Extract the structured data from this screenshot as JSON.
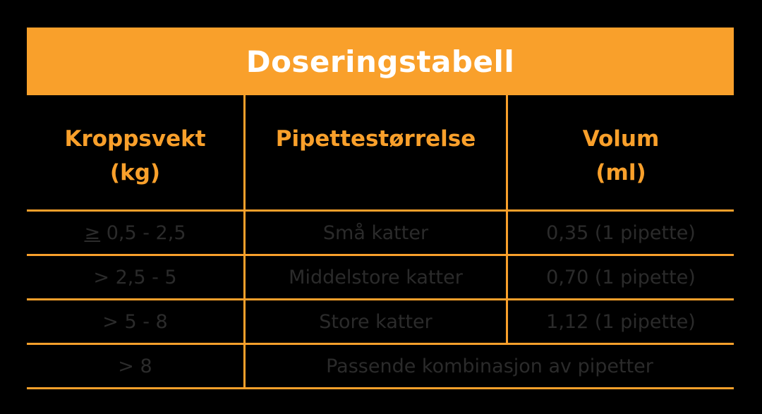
{
  "title": "Doseringstabell",
  "colors": {
    "accent": "#F9A02B",
    "background": "#000000",
    "body_text": "#2b2b2b",
    "title_text": "#ffffff"
  },
  "headers": [
    "Kroppsvekt\n(kg)",
    "Pipettestørrelse",
    "Volum\n(ml)"
  ],
  "rows": [
    {
      "weight_symbol": "≥",
      "weight": " 0,5 - 2,5",
      "size": "Små katter",
      "volume": "0,35 (1 pipette)"
    },
    {
      "weight_symbol": "",
      "weight": "> 2,5 - 5",
      "size": "Middelstore katter",
      "volume": "0,70 (1 pipette)"
    },
    {
      "weight_symbol": "",
      "weight": "> 5 - 8",
      "size": "Store katter",
      "volume": "1,12 (1 pipette)"
    },
    {
      "weight_symbol": "",
      "weight": "> 8",
      "size": "Passende kombinasjon av pipetter",
      "volume": ""
    }
  ]
}
